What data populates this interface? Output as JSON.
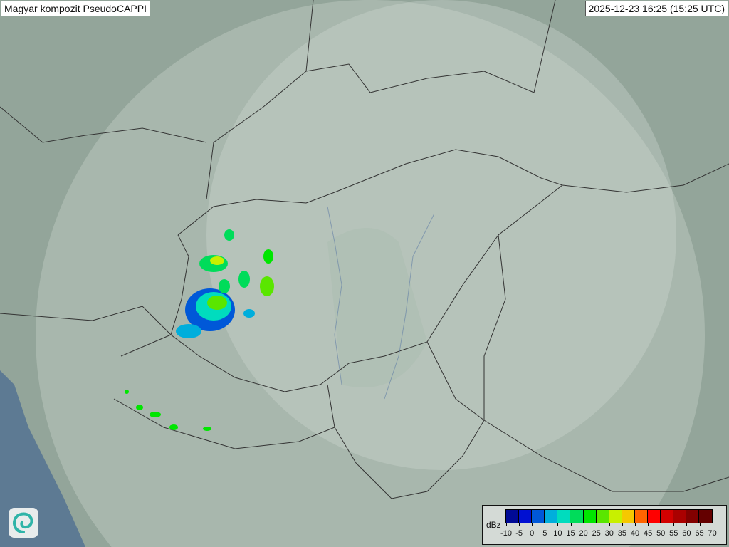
{
  "title": "Magyar kompozit  PseudoCAPPI",
  "timestamp": "2025-12-23 16:25 (15:25 UTC)",
  "legend": {
    "unit": "dBz",
    "ticks": [
      "-10",
      "-5",
      "0",
      "5",
      "10",
      "15",
      "20",
      "25",
      "30",
      "35",
      "40",
      "45",
      "50",
      "55",
      "60",
      "65",
      "70"
    ],
    "colors": [
      "#000a96",
      "#0010d2",
      "#0058d8",
      "#00aedc",
      "#00dcbe",
      "#00dc5a",
      "#00e600",
      "#5ae600",
      "#c8f000",
      "#f5c800",
      "#ff6400",
      "#ff0000",
      "#d20000",
      "#aa0000",
      "#820000",
      "#640000"
    ]
  },
  "logo_icon": "swirl-logo-icon",
  "colors": {
    "land": "#93a59a",
    "coverage": "#c3cfc6",
    "sea": "#5d7a93",
    "border": "#333333"
  }
}
